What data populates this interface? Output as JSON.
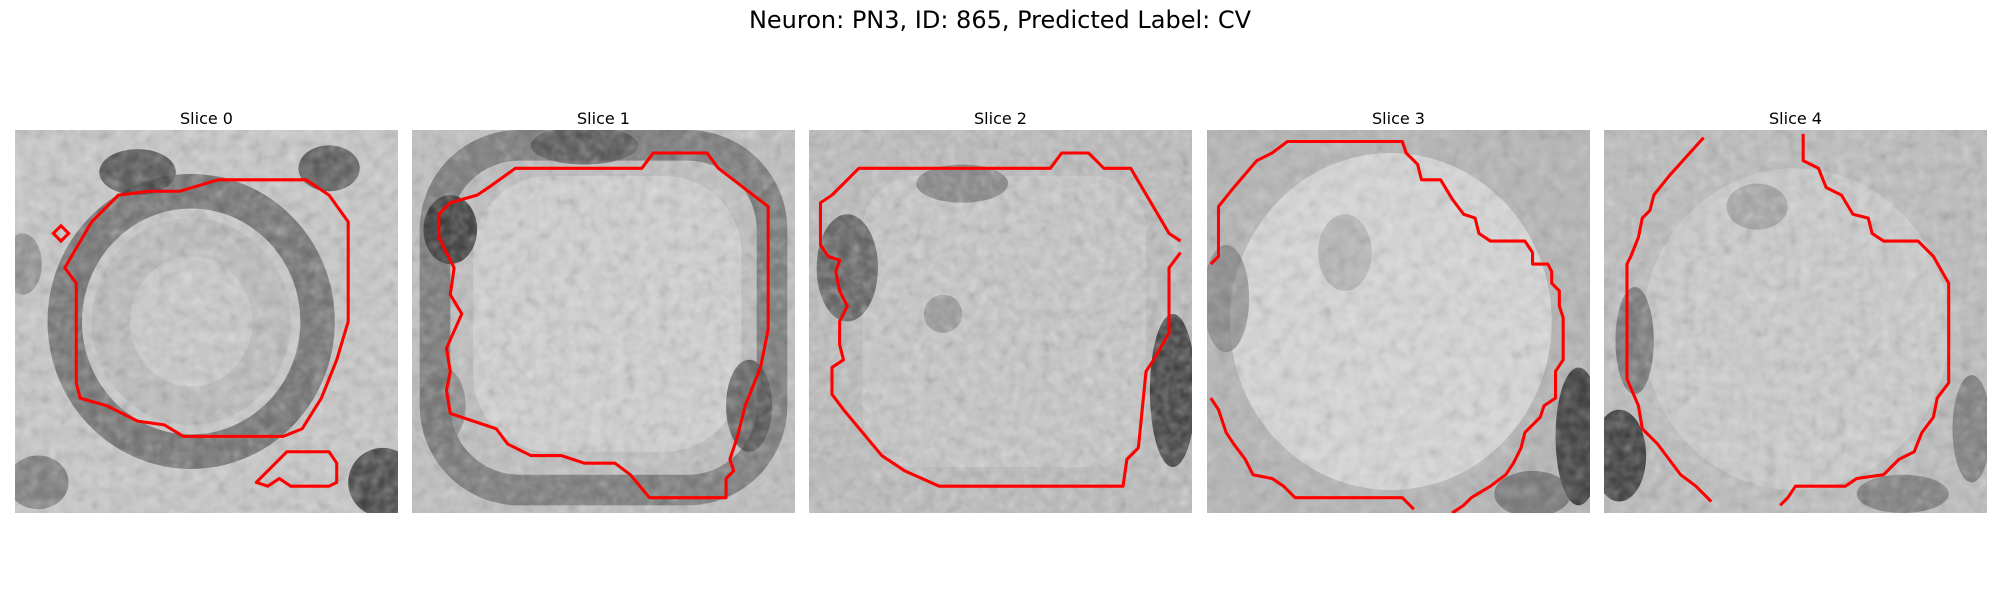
{
  "figure": {
    "title": "Neuron: PN3, ID: 865, Predicted Label: CV"
  },
  "panels": [
    {
      "title": "Slice 0"
    },
    {
      "title": "Slice 1"
    },
    {
      "title": "Slice 2"
    },
    {
      "title": "Slice 3"
    },
    {
      "title": "Slice 4"
    }
  ],
  "colors": {
    "contour": "#ff0000",
    "background": "#ffffff"
  },
  "image": {
    "colormap": "grayscale",
    "pixel_grid": 32
  }
}
